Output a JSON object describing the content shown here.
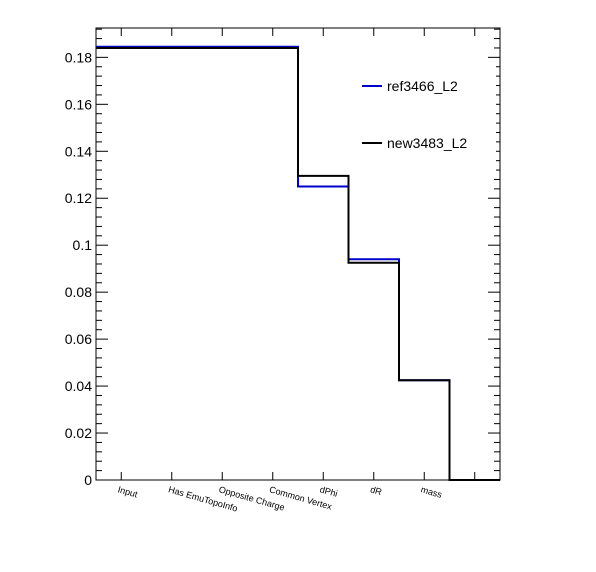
{
  "chart_data": {
    "type": "line",
    "step": true,
    "categories": [
      "Input",
      "Has EmuTopoInfo",
      "Opposite Charge",
      "Common Vertex",
      "dPhi",
      "dR",
      "mass",
      ""
    ],
    "series": [
      {
        "name": "ref3466_L2",
        "color": "#0000cc",
        "values": [
          0.1845,
          0.1845,
          0.1845,
          0.1845,
          0.125,
          0.094,
          0.0425,
          0.0
        ]
      },
      {
        "name": "new3483_L2",
        "color": "#000000",
        "values": [
          0.184,
          0.184,
          0.184,
          0.184,
          0.1295,
          0.0925,
          0.0425,
          0.0
        ]
      }
    ],
    "ylim": [
      0,
      0.1925
    ],
    "yticks": [
      "0",
      "0.02",
      "0.04",
      "0.06",
      "0.08",
      "0.1",
      "0.12",
      "0.14",
      "0.16",
      "0.18"
    ],
    "title": "",
    "xlabel": "",
    "ylabel": "",
    "legend_position": "top-right",
    "grid": false
  }
}
